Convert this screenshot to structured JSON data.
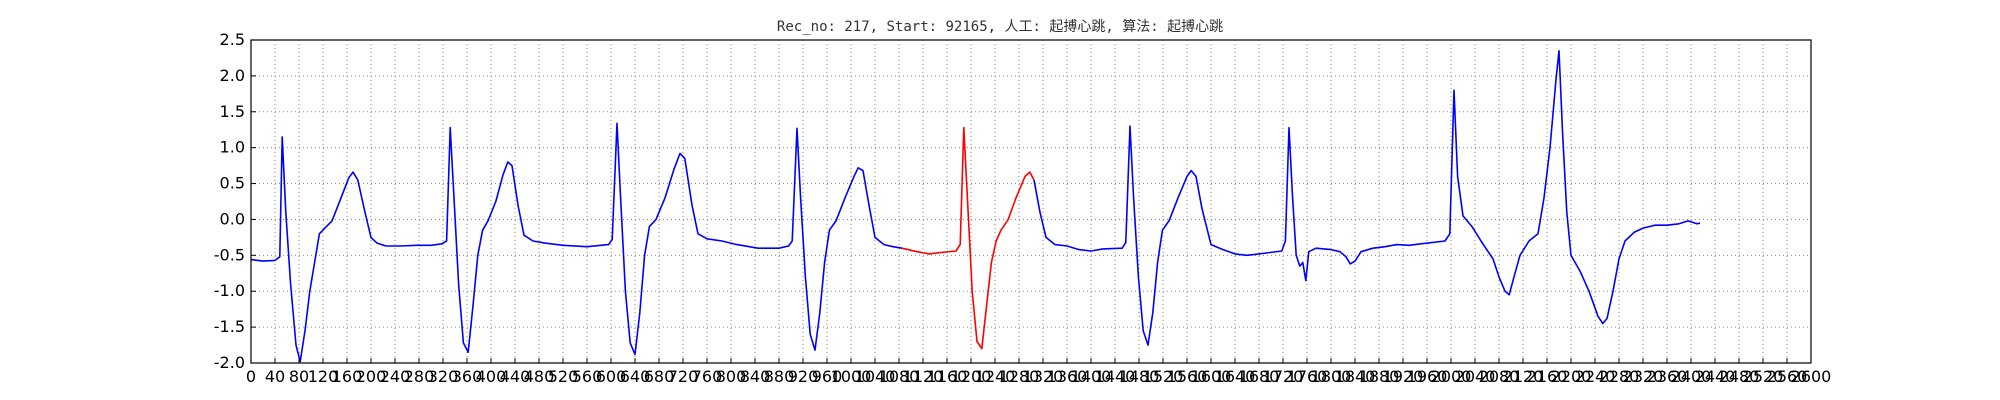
{
  "chart_data": {
    "type": "line",
    "title": "Rec_no: 217, Start: 92165, 人工: 起搏心跳, 算法: 起搏心跳",
    "xlabel": "",
    "ylabel": "",
    "xlim": [
      0,
      2600
    ],
    "ylim": [
      -2.0,
      2.5
    ],
    "grid": true,
    "x_ticks": [
      0,
      40,
      80,
      120,
      160,
      200,
      240,
      280,
      320,
      360,
      400,
      440,
      480,
      520,
      560,
      600,
      640,
      680,
      720,
      760,
      800,
      840,
      880,
      920,
      960,
      1000,
      1040,
      1080,
      1120,
      1160,
      1200,
      1240,
      1280,
      1320,
      1360,
      1400,
      1440,
      1480,
      1520,
      1560,
      1600,
      1640,
      1680,
      1720,
      1760,
      1800,
      1840,
      1880,
      1920,
      1960,
      2000,
      2040,
      2080,
      2120,
      2160,
      2200,
      2240,
      2280,
      2320,
      2360,
      2400,
      2440,
      2480,
      2520,
      2560,
      2600
    ],
    "y_ticks": [
      "-2.0",
      "-1.5",
      "-1.0",
      "-0.5",
      "0.0",
      "0.5",
      "1.0",
      "1.5",
      "2.0",
      "2.5"
    ],
    "series": [
      {
        "color": "#0000ff",
        "segment": "before",
        "points": [
          [
            0,
            -0.56
          ],
          [
            20,
            -0.58
          ],
          [
            40,
            -0.57
          ],
          [
            48,
            -0.52
          ],
          [
            52,
            1.15
          ],
          [
            58,
            0.1
          ],
          [
            66,
            -0.9
          ],
          [
            75,
            -1.75
          ],
          [
            82,
            -1.98
          ],
          [
            90,
            -1.55
          ],
          [
            98,
            -1.0
          ],
          [
            106,
            -0.6
          ],
          [
            114,
            -0.2
          ],
          [
            122,
            -0.13
          ],
          [
            135,
            -0.02
          ],
          [
            150,
            0.3
          ],
          [
            163,
            0.58
          ],
          [
            170,
            0.66
          ],
          [
            178,
            0.55
          ],
          [
            190,
            0.1
          ],
          [
            200,
            -0.25
          ],
          [
            210,
            -0.33
          ],
          [
            225,
            -0.37
          ],
          [
            250,
            -0.37
          ],
          [
            275,
            -0.36
          ],
          [
            300,
            -0.36
          ],
          [
            318,
            -0.34
          ],
          [
            326,
            -0.3
          ],
          [
            332,
            1.28
          ],
          [
            338,
            0.35
          ],
          [
            346,
            -0.9
          ],
          [
            354,
            -1.72
          ],
          [
            362,
            -1.85
          ],
          [
            370,
            -1.2
          ],
          [
            378,
            -0.5
          ],
          [
            386,
            -0.15
          ],
          [
            395,
            -0.02
          ],
          [
            408,
            0.25
          ],
          [
            420,
            0.62
          ],
          [
            428,
            0.8
          ],
          [
            435,
            0.75
          ],
          [
            445,
            0.2
          ],
          [
            455,
            -0.22
          ],
          [
            470,
            -0.3
          ],
          [
            490,
            -0.33
          ],
          [
            520,
            -0.36
          ],
          [
            560,
            -0.38
          ],
          [
            596,
            -0.35
          ],
          [
            602,
            -0.28
          ],
          [
            610,
            1.34
          ],
          [
            616,
            0.3
          ],
          [
            624,
            -1.0
          ],
          [
            632,
            -1.72
          ],
          [
            640,
            -1.88
          ],
          [
            648,
            -1.3
          ],
          [
            656,
            -0.5
          ],
          [
            664,
            -0.1
          ],
          [
            675,
            0.0
          ],
          [
            690,
            0.3
          ],
          [
            705,
            0.7
          ],
          [
            715,
            0.92
          ],
          [
            723,
            0.85
          ],
          [
            735,
            0.2
          ],
          [
            745,
            -0.2
          ],
          [
            760,
            -0.27
          ],
          [
            785,
            -0.3
          ],
          [
            810,
            -0.35
          ],
          [
            845,
            -0.4
          ],
          [
            880,
            -0.4
          ],
          [
            896,
            -0.37
          ],
          [
            902,
            -0.3
          ],
          [
            910,
            1.27
          ],
          [
            916,
            0.3
          ],
          [
            924,
            -0.8
          ],
          [
            932,
            -1.6
          ],
          [
            940,
            -1.82
          ],
          [
            948,
            -1.3
          ],
          [
            956,
            -0.6
          ],
          [
            964,
            -0.15
          ],
          [
            975,
            -0.02
          ],
          [
            990,
            0.3
          ],
          [
            1005,
            0.6
          ],
          [
            1012,
            0.72
          ],
          [
            1020,
            0.68
          ],
          [
            1030,
            0.2
          ],
          [
            1040,
            -0.25
          ],
          [
            1055,
            -0.35
          ],
          [
            1070,
            -0.38
          ],
          [
            1085,
            -0.4
          ]
        ]
      },
      {
        "color": "#ff0000",
        "segment": "target",
        "points": [
          [
            1085,
            -0.4
          ],
          [
            1110,
            -0.45
          ],
          [
            1130,
            -0.48
          ],
          [
            1150,
            -0.46
          ],
          [
            1175,
            -0.44
          ],
          [
            1182,
            -0.35
          ],
          [
            1188,
            1.28
          ],
          [
            1194,
            0.3
          ],
          [
            1202,
            -1.0
          ],
          [
            1210,
            -1.7
          ],
          [
            1218,
            -1.8
          ],
          [
            1226,
            -1.2
          ],
          [
            1234,
            -0.6
          ],
          [
            1242,
            -0.3
          ],
          [
            1250,
            -0.15
          ],
          [
            1262,
            0.0
          ],
          [
            1275,
            0.3
          ],
          [
            1290,
            0.6
          ],
          [
            1298,
            0.66
          ],
          [
            1305,
            0.55
          ]
        ]
      },
      {
        "color": "#0000ff",
        "segment": "after",
        "points": [
          [
            1305,
            0.55
          ],
          [
            1315,
            0.1
          ],
          [
            1325,
            -0.25
          ],
          [
            1340,
            -0.35
          ],
          [
            1360,
            -0.37
          ],
          [
            1380,
            -0.42
          ],
          [
            1400,
            -0.44
          ],
          [
            1420,
            -0.41
          ],
          [
            1452,
            -0.4
          ],
          [
            1458,
            -0.32
          ],
          [
            1465,
            1.3
          ],
          [
            1471,
            0.3
          ],
          [
            1479,
            -0.8
          ],
          [
            1487,
            -1.55
          ],
          [
            1495,
            -1.75
          ],
          [
            1503,
            -1.3
          ],
          [
            1511,
            -0.6
          ],
          [
            1519,
            -0.15
          ],
          [
            1530,
            -0.02
          ],
          [
            1545,
            0.3
          ],
          [
            1560,
            0.6
          ],
          [
            1567,
            0.68
          ],
          [
            1575,
            0.6
          ],
          [
            1585,
            0.15
          ],
          [
            1600,
            -0.35
          ],
          [
            1620,
            -0.42
          ],
          [
            1640,
            -0.48
          ],
          [
            1660,
            -0.5
          ],
          [
            1680,
            -0.48
          ],
          [
            1718,
            -0.44
          ],
          [
            1724,
            -0.3
          ],
          [
            1730,
            1.28
          ],
          [
            1736,
            0.3
          ],
          [
            1742,
            -0.5
          ],
          [
            1748,
            -0.65
          ],
          [
            1753,
            -0.6
          ],
          [
            1758,
            -0.85
          ],
          [
            1763,
            -0.45
          ],
          [
            1775,
            -0.4
          ],
          [
            1800,
            -0.42
          ],
          [
            1815,
            -0.45
          ],
          [
            1825,
            -0.52
          ],
          [
            1832,
            -0.62
          ],
          [
            1840,
            -0.58
          ],
          [
            1850,
            -0.45
          ],
          [
            1870,
            -0.4
          ],
          [
            1890,
            -0.38
          ],
          [
            1910,
            -0.35
          ],
          [
            1930,
            -0.36
          ],
          [
            1950,
            -0.34
          ],
          [
            1990,
            -0.3
          ],
          [
            1998,
            -0.2
          ],
          [
            2005,
            1.8
          ],
          [
            2011,
            0.6
          ],
          [
            2020,
            0.05
          ],
          [
            2035,
            -0.1
          ],
          [
            2050,
            -0.3
          ],
          [
            2070,
            -0.55
          ],
          [
            2080,
            -0.8
          ],
          [
            2090,
            -1.0
          ],
          [
            2097,
            -1.05
          ],
          [
            2105,
            -0.8
          ],
          [
            2115,
            -0.5
          ],
          [
            2130,
            -0.3
          ],
          [
            2145,
            -0.2
          ],
          [
            2155,
            0.3
          ],
          [
            2165,
            1.0
          ],
          [
            2175,
            1.95
          ],
          [
            2180,
            2.35
          ],
          [
            2186,
            1.2
          ],
          [
            2193,
            0.1
          ],
          [
            2200,
            -0.5
          ],
          [
            2215,
            -0.72
          ],
          [
            2230,
            -1.0
          ],
          [
            2245,
            -1.35
          ],
          [
            2253,
            -1.45
          ],
          [
            2260,
            -1.38
          ],
          [
            2270,
            -1.0
          ],
          [
            2280,
            -0.55
          ],
          [
            2290,
            -0.3
          ],
          [
            2305,
            -0.18
          ],
          [
            2320,
            -0.12
          ],
          [
            2340,
            -0.08
          ],
          [
            2360,
            -0.08
          ],
          [
            2380,
            -0.06
          ],
          [
            2395,
            -0.02
          ],
          [
            2410,
            -0.06
          ],
          [
            2415,
            -0.05
          ]
        ]
      }
    ]
  }
}
